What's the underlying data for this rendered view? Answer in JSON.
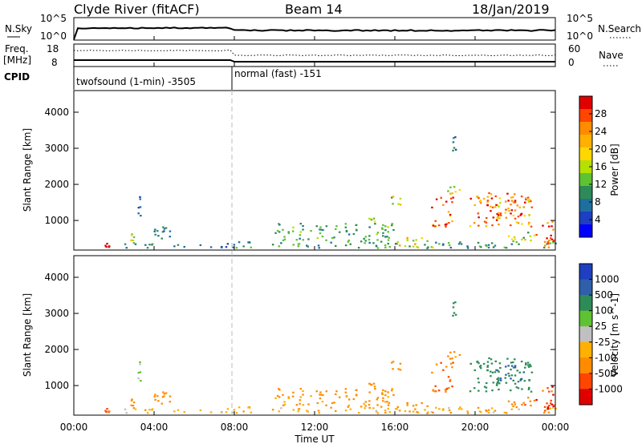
{
  "header": {
    "station": "Clyde River (fitACF)",
    "beam": "Beam 14",
    "date": "18/Jan/2019"
  },
  "left_labels": {
    "nsky": "N.Sky",
    "freq": "Freq.",
    "freq_unit": "[MHz]",
    "cpid": "CPID"
  },
  "right_labels": {
    "nsearch": "N.Search",
    "nave": "Nave"
  },
  "nsky_axis": {
    "top": "10^5",
    "bottom": "10^0"
  },
  "freq_axis": {
    "top": "18",
    "bottom": "8"
  },
  "nave_axis": {
    "top": "60",
    "bottom": "0"
  },
  "cpid": [
    {
      "label": "twofsound (1-min) -3505",
      "start_hour": 0,
      "end_hour": 8
    },
    {
      "label": "normal (fast) -151",
      "start_hour": 8,
      "end_hour": 24
    }
  ],
  "colorbars": {
    "power": {
      "label": "Power [dB]",
      "ticks": [
        "28",
        "24",
        "20",
        "16",
        "12",
        "8",
        "4"
      ],
      "colors": [
        "#e00000",
        "#ff4500",
        "#ff8c00",
        "#ffb000",
        "#ffd700",
        "#b5e000",
        "#5ec232",
        "#2e8b57",
        "#1e6f9f",
        "#1e3fbf",
        "#0000ff"
      ]
    },
    "velocity": {
      "label": "Velocity [m s^-1]",
      "ticks": [
        "1000",
        "500",
        "100",
        "25",
        "-25",
        "-100",
        "-500",
        "-1000"
      ],
      "colors": [
        "#1e3fbf",
        "#2f5fa8",
        "#2e8b57",
        "#5ec232",
        "#c0c0c0",
        "#ffb000",
        "#ff8c00",
        "#ff4500",
        "#e00000"
      ]
    }
  },
  "chart_data": {
    "type": "heatmap",
    "xlabel": "Time UT",
    "ylabel": "Slant Range [km]",
    "x_ticks": [
      "00:00",
      "04:00",
      "08:00",
      "12:00",
      "16:00",
      "20:00",
      "00:00"
    ],
    "y_ticks": [
      "1000",
      "2000",
      "3000",
      "4000"
    ],
    "xlim_hours": [
      0,
      24
    ],
    "ylim_km": [
      180,
      4600
    ],
    "mode_change_hour": 8,
    "clusters": [
      {
        "t0": 1.5,
        "t1": 1.8,
        "r0": 220,
        "r1": 340,
        "power": 26,
        "velocity": -700
      },
      {
        "t0": 2.7,
        "t1": 3.0,
        "r0": 300,
        "r1": 600,
        "power": 18,
        "velocity": -200
      },
      {
        "t0": 3.1,
        "t1": 3.4,
        "r0": 1100,
        "r1": 1650,
        "power": 8,
        "velocity": 50
      },
      {
        "t0": 3.7,
        "t1": 5.0,
        "r0": 400,
        "r1": 800,
        "power": 10,
        "velocity": -300
      },
      {
        "t0": 2.0,
        "t1": 8.0,
        "r0": 200,
        "r1": 330,
        "power": 10,
        "velocity": -60
      },
      {
        "t0": 8.0,
        "t1": 24.0,
        "r0": 200,
        "r1": 380,
        "power": 12,
        "velocity": -80
      },
      {
        "t0": 10.0,
        "t1": 16.0,
        "r0": 380,
        "r1": 900,
        "power": 14,
        "velocity": -150
      },
      {
        "t0": 14.5,
        "t1": 15.0,
        "r0": 800,
        "r1": 1050,
        "power": 18,
        "velocity": -200
      },
      {
        "t0": 15.8,
        "t1": 16.3,
        "r0": 1400,
        "r1": 1800,
        "power": 18,
        "velocity": -350
      },
      {
        "t0": 16.0,
        "t1": 18.0,
        "r0": 200,
        "r1": 500,
        "power": 20,
        "velocity": -120
      },
      {
        "t0": 17.8,
        "t1": 18.9,
        "r0": 800,
        "r1": 1650,
        "power": 26,
        "velocity": -500
      },
      {
        "t0": 18.6,
        "t1": 19.2,
        "r0": 1700,
        "r1": 2200,
        "power": 18,
        "velocity": -200
      },
      {
        "t0": 19.7,
        "t1": 22.8,
        "r0": 800,
        "r1": 1750,
        "power": 24,
        "velocity": 300
      },
      {
        "t0": 20.5,
        "t1": 22.5,
        "r0": 1100,
        "r1": 1550,
        "power": 28,
        "velocity": 500
      },
      {
        "t0": 21.5,
        "t1": 23.0,
        "r0": 350,
        "r1": 700,
        "power": 18,
        "velocity": -350
      },
      {
        "t0": 23.0,
        "t1": 24.0,
        "r0": 200,
        "r1": 950,
        "power": 28,
        "velocity": -800
      },
      {
        "t0": 18.8,
        "t1": 19.0,
        "r0": 2900,
        "r1": 3300,
        "power": 10,
        "velocity": 200
      }
    ]
  }
}
